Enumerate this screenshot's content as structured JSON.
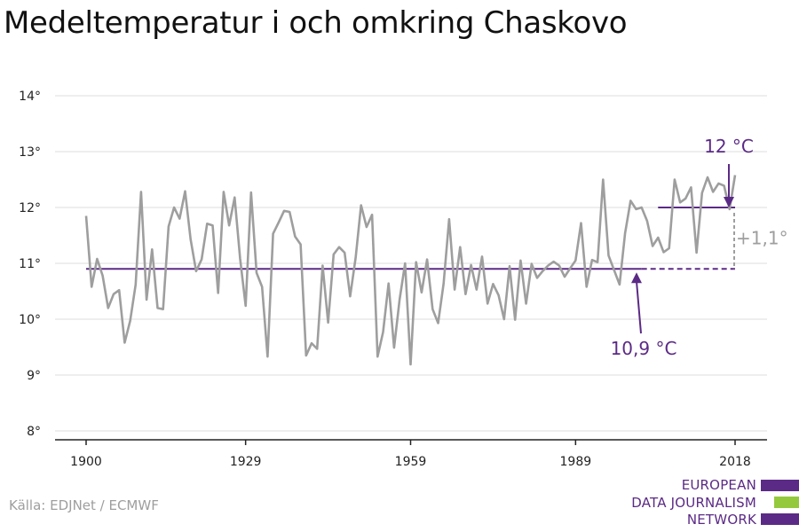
{
  "title": "Medeltemperatur i och omkring Chaskovo",
  "source": "Källa: EDJNet / ECMWF",
  "logo": {
    "lines": [
      "EUROPEAN",
      "DATA JOURNALISM",
      "NETWORK"
    ],
    "colors": [
      "#5b2a86",
      "#95c93d",
      "#5b2a86"
    ]
  },
  "colors": {
    "series": "#9e9e9e",
    "reference": "#5b2a86",
    "grid": "#dddddd",
    "axis": "#222222",
    "delta": "#9e9e9e"
  },
  "annotations": {
    "recent_mean": "12 °C",
    "baseline_mean": "10,9 °C",
    "delta": "+1,1°"
  },
  "chart_data": {
    "type": "line",
    "title": "Medeltemperatur i och omkring Chaskovo",
    "xlabel": "",
    "ylabel": "",
    "x_ticks": [
      1900,
      1929,
      1959,
      1989,
      2018
    ],
    "y_ticks": [
      8,
      9,
      10,
      11,
      12,
      13,
      14
    ],
    "y_tick_labels": [
      "8°",
      "9°",
      "10°",
      "11°",
      "12°",
      "13°",
      "14°"
    ],
    "xlim": [
      1900,
      2018
    ],
    "ylim": [
      8,
      14
    ],
    "grid": true,
    "series": [
      {
        "x": [
          1900,
          1901,
          1902,
          1903,
          1904,
          1905,
          1906,
          1907,
          1908,
          1909,
          1910,
          1911,
          1912,
          1913,
          1914,
          1915,
          1916,
          1917,
          1918,
          1919,
          1920,
          1921,
          1922,
          1923,
          1924,
          1925,
          1926,
          1927,
          1928,
          1929,
          1930,
          1931,
          1932,
          1933,
          1934,
          1935,
          1936,
          1937,
          1938,
          1939,
          1940,
          1941,
          1942,
          1943,
          1944,
          1945,
          1946,
          1947,
          1948,
          1949,
          1950,
          1951,
          1952,
          1953,
          1954,
          1955,
          1956,
          1957,
          1958,
          1959,
          1960,
          1961,
          1962,
          1963,
          1964,
          1965,
          1966,
          1967,
          1968,
          1969,
          1970,
          1971,
          1972,
          1973,
          1974,
          1975,
          1976,
          1977,
          1978,
          1979,
          1980,
          1981,
          1982,
          1983,
          1984,
          1985,
          1986,
          1987,
          1988,
          1989,
          1990,
          1991,
          1992,
          1993,
          1994,
          1995,
          1996,
          1997,
          1998,
          1999,
          2000,
          2001,
          2002,
          2003,
          2004,
          2005,
          2006,
          2007,
          2008,
          2009,
          2010,
          2011,
          2012,
          2013,
          2014,
          2015,
          2016,
          2017,
          2018
        ],
        "values": [
          11.85,
          10.58,
          11.08,
          10.78,
          10.2,
          10.45,
          10.52,
          9.58,
          9.97,
          10.62,
          12.28,
          10.35,
          11.25,
          10.2,
          10.18,
          11.66,
          12.0,
          11.8,
          12.29,
          11.43,
          10.86,
          11.07,
          11.71,
          11.68,
          10.47,
          12.28,
          11.68,
          12.18,
          11.08,
          10.24,
          12.27,
          10.83,
          10.58,
          9.33,
          11.53,
          11.73,
          11.94,
          11.92,
          11.48,
          11.34,
          9.35,
          9.57,
          9.47,
          10.96,
          9.94,
          11.16,
          11.29,
          11.19,
          10.41,
          11.1,
          12.04,
          11.65,
          11.87,
          9.33,
          9.77,
          10.64,
          9.49,
          10.35,
          11.0,
          9.19,
          11.02,
          10.48,
          11.07,
          10.18,
          9.93,
          10.64,
          11.79,
          10.53,
          11.29,
          10.45,
          10.97,
          10.53,
          11.12,
          10.28,
          10.63,
          10.43,
          10.0,
          10.95,
          9.99,
          11.05,
          10.28,
          10.99,
          10.74,
          10.86,
          10.96,
          11.03,
          10.96,
          10.76,
          10.91,
          11.05,
          11.72,
          10.58,
          11.06,
          11.02,
          12.5,
          11.14,
          10.88,
          10.62,
          11.54,
          12.12,
          11.97,
          12.0,
          11.76,
          11.31,
          11.46,
          11.2,
          11.27,
          12.5,
          12.09,
          12.16,
          12.36,
          11.19,
          12.26,
          12.54,
          12.28,
          12.43,
          12.39,
          11.97,
          12.58
        ]
      }
    ],
    "reference_lines": [
      {
        "label": "10,9 °C",
        "value": 10.9,
        "x_start": 1900,
        "x_end": 2018,
        "dashed_from": 2001
      },
      {
        "label": "12 °C",
        "value": 12.0,
        "x_start": 2004,
        "x_end": 2018
      }
    ],
    "delta": {
      "label": "+1,1°",
      "from": 10.9,
      "to": 12.0,
      "x": 2018
    }
  }
}
